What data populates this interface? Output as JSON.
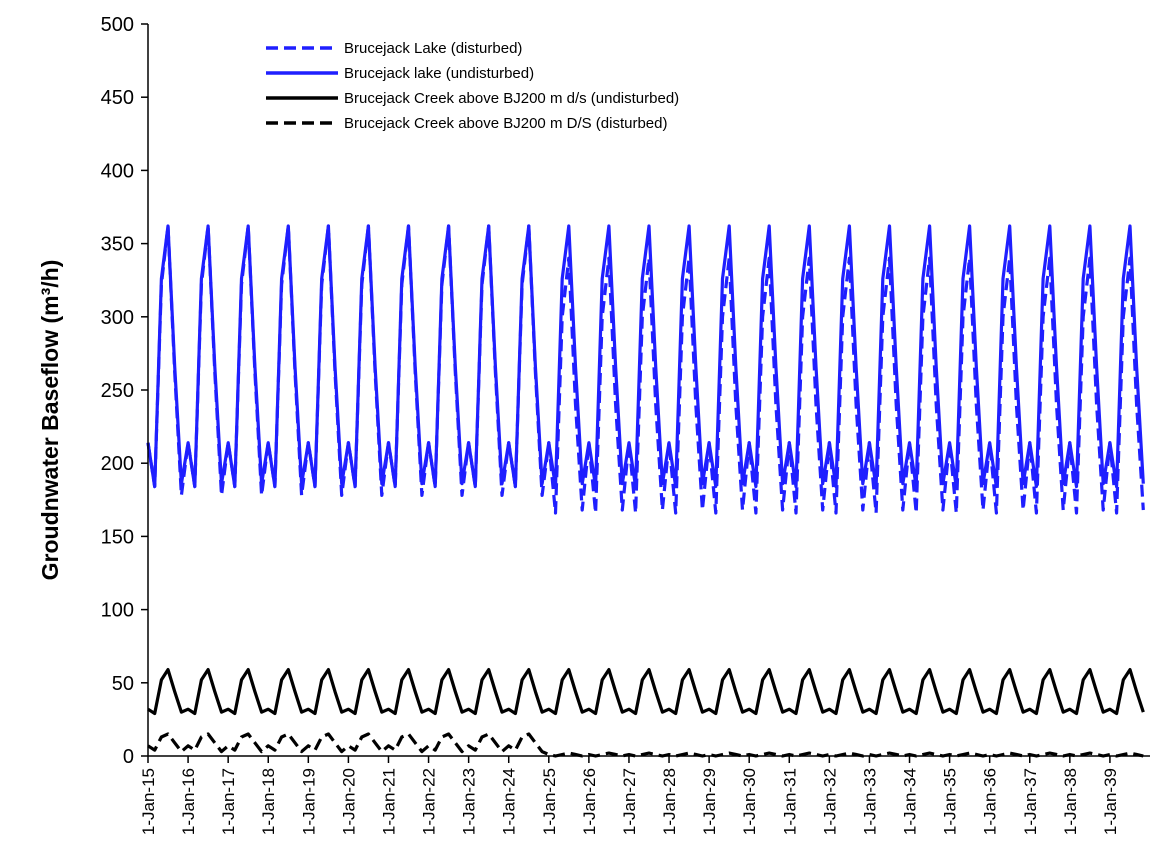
{
  "chart_data": {
    "type": "line",
    "title": "",
    "xlabel": "",
    "ylabel": "Groudnwater Baseflow",
    "ylabel_unit": "(m³/h)",
    "ylim": [
      0,
      500
    ],
    "yticks": [
      0,
      50,
      100,
      150,
      200,
      250,
      300,
      350,
      400,
      450,
      500
    ],
    "x_start": "1-Jan-15",
    "x_end": "1-Jan-40",
    "xtick_labels": [
      "1-Jan-15",
      "1-Jan-16",
      "1-Jan-17",
      "1-Jan-18",
      "1-Jan-19",
      "1-Jan-20",
      "1-Jan-21",
      "1-Jan-22",
      "1-Jan-23",
      "1-Jan-24",
      "1-Jan-25",
      "1-Jan-26",
      "1-Jan-27",
      "1-Jan-28",
      "1-Jan-29",
      "1-Jan-30",
      "1-Jan-31",
      "1-Jan-32",
      "1-Jan-33",
      "1-Jan-34",
      "1-Jan-35",
      "1-Jan-36",
      "1-Jan-37",
      "1-Jan-38",
      "1-Jan-39"
    ],
    "grid": false,
    "legend_position": "top-left",
    "sample_points_per_year": [
      "Jan",
      "Mar",
      "May",
      "Jul",
      "Sep",
      "Nov"
    ],
    "series": [
      {
        "name": "Brucejack Lake (disturbed)",
        "color": "#1f1fff",
        "style": "dashed",
        "years": [
          "2015",
          "2016",
          "2017",
          "2018",
          "2019",
          "2020",
          "2021",
          "2022",
          "2023",
          "2024",
          "2025",
          "2026",
          "2027",
          "2028",
          "2029",
          "2030",
          "2031",
          "2032",
          "2033",
          "2034",
          "2035",
          "2036",
          "2037",
          "2038",
          "2039"
        ],
        "annual_cycle_early": [
          214,
          184,
          322,
          362,
          262,
          178
        ],
        "annual_cycle_late": [
          214,
          166,
          300,
          340,
          240,
          168
        ],
        "note_change_year": "2025"
      },
      {
        "name": "Brucejack lake (undisturbed)",
        "color": "#1f1fff",
        "style": "solid",
        "annual_cycle": [
          214,
          184,
          326,
          362,
          266,
          186
        ]
      },
      {
        "name": "Brucejack Creek above BJ200 m d/s (undisturbed)",
        "color": "#000000",
        "style": "solid",
        "annual_cycle": [
          32,
          29,
          52,
          59,
          44,
          30
        ]
      },
      {
        "name": "Brucejack Creek above BJ200 m D/S (disturbed)",
        "color": "#000000",
        "style": "dashed",
        "annual_cycle_early": [
          7,
          4,
          13,
          15,
          9,
          3
        ],
        "annual_cycle_late": [
          1,
          0,
          1,
          2,
          1,
          0
        ]
      }
    ]
  },
  "legend": [
    {
      "label": "Brucejack Lake (disturbed)"
    },
    {
      "label": "Brucejack lake (undisturbed)"
    },
    {
      "label": "Brucejack Creek above BJ200 m d/s (undisturbed)"
    },
    {
      "label": "Brucejack Creek above BJ200 m D/S (disturbed)"
    }
  ]
}
